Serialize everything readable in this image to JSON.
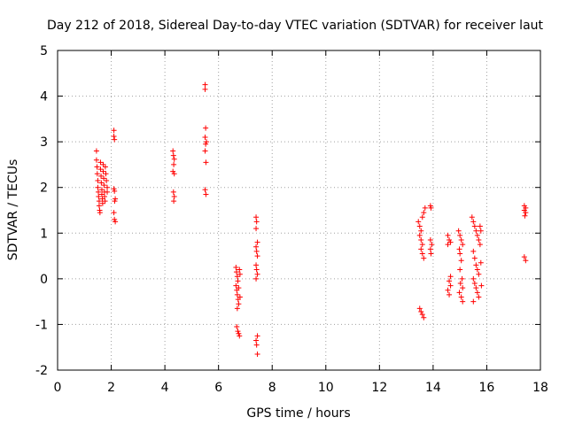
{
  "chart_data": {
    "type": "scatter",
    "title": "Day 212 of 2018, Sidereal Day-to-day VTEC variation (SDTVAR) for receiver laut",
    "xlabel": "GPS time / hours",
    "ylabel": "SDTVAR / TECUs",
    "xlim": [
      0,
      18
    ],
    "ylim": [
      -2,
      5
    ],
    "xticks": [
      0,
      2,
      4,
      6,
      8,
      10,
      12,
      14,
      16,
      18
    ],
    "yticks": [
      -2,
      -1,
      0,
      1,
      2,
      3,
      4,
      5
    ],
    "grid": true,
    "marker": "+",
    "color": "#ff0000",
    "series": [
      {
        "name": "SDTVAR",
        "points": [
          [
            1.45,
            2.8
          ],
          [
            1.45,
            2.6
          ],
          [
            1.47,
            2.45
          ],
          [
            1.48,
            2.3
          ],
          [
            1.5,
            2.15
          ],
          [
            1.5,
            2.0
          ],
          [
            1.52,
            1.9
          ],
          [
            1.53,
            1.8
          ],
          [
            1.55,
            1.7
          ],
          [
            1.55,
            1.6
          ],
          [
            1.57,
            1.5
          ],
          [
            1.58,
            1.45
          ],
          [
            1.6,
            2.55
          ],
          [
            1.6,
            2.4
          ],
          [
            1.62,
            2.25
          ],
          [
            1.63,
            2.1
          ],
          [
            1.65,
            1.95
          ],
          [
            1.65,
            1.85
          ],
          [
            1.67,
            1.75
          ],
          [
            1.68,
            1.65
          ],
          [
            1.7,
            2.5
          ],
          [
            1.7,
            2.35
          ],
          [
            1.72,
            2.2
          ],
          [
            1.73,
            2.05
          ],
          [
            1.75,
            1.9
          ],
          [
            1.75,
            1.8
          ],
          [
            1.77,
            1.7
          ],
          [
            1.78,
            2.45
          ],
          [
            1.8,
            2.3
          ],
          [
            1.82,
            2.15
          ],
          [
            1.85,
            2.0
          ],
          [
            1.85,
            1.9
          ],
          [
            2.1,
            3.25
          ],
          [
            2.1,
            3.12
          ],
          [
            2.12,
            3.05
          ],
          [
            2.1,
            1.97
          ],
          [
            2.12,
            1.92
          ],
          [
            2.15,
            1.75
          ],
          [
            2.13,
            1.7
          ],
          [
            2.1,
            1.45
          ],
          [
            2.12,
            1.3
          ],
          [
            2.15,
            1.25
          ],
          [
            4.3,
            2.8
          ],
          [
            4.32,
            2.7
          ],
          [
            4.35,
            2.62
          ],
          [
            4.33,
            2.5
          ],
          [
            4.3,
            2.35
          ],
          [
            4.35,
            2.3
          ],
          [
            4.32,
            1.9
          ],
          [
            4.35,
            1.8
          ],
          [
            4.33,
            1.7
          ],
          [
            5.5,
            4.25
          ],
          [
            5.5,
            4.15
          ],
          [
            5.52,
            3.3
          ],
          [
            5.5,
            3.1
          ],
          [
            5.55,
            3.0
          ],
          [
            5.52,
            2.95
          ],
          [
            5.5,
            2.8
          ],
          [
            5.53,
            2.55
          ],
          [
            5.5,
            1.95
          ],
          [
            5.53,
            1.85
          ],
          [
            6.65,
            0.25
          ],
          [
            6.67,
            0.15
          ],
          [
            6.7,
            0.05
          ],
          [
            6.72,
            -0.05
          ],
          [
            6.65,
            -0.15
          ],
          [
            6.68,
            -0.25
          ],
          [
            6.7,
            -0.35
          ],
          [
            6.73,
            -0.45
          ],
          [
            6.75,
            -0.55
          ],
          [
            6.7,
            -0.65
          ],
          [
            6.78,
            0.2
          ],
          [
            6.8,
            0.1
          ],
          [
            6.75,
            -0.2
          ],
          [
            6.8,
            -0.4
          ],
          [
            6.68,
            -1.05
          ],
          [
            6.72,
            -1.15
          ],
          [
            6.75,
            -1.2
          ],
          [
            6.78,
            -1.25
          ],
          [
            7.4,
            1.35
          ],
          [
            7.42,
            1.25
          ],
          [
            7.4,
            1.1
          ],
          [
            7.45,
            0.8
          ],
          [
            7.4,
            0.7
          ],
          [
            7.42,
            0.6
          ],
          [
            7.45,
            0.5
          ],
          [
            7.4,
            0.3
          ],
          [
            7.42,
            0.2
          ],
          [
            7.45,
            0.1
          ],
          [
            7.4,
            0.0
          ],
          [
            7.45,
            -1.25
          ],
          [
            7.4,
            -1.35
          ],
          [
            7.42,
            -1.45
          ],
          [
            7.45,
            -1.65
          ],
          [
            13.45,
            1.25
          ],
          [
            13.5,
            1.15
          ],
          [
            13.55,
            1.05
          ],
          [
            13.5,
            0.95
          ],
          [
            13.55,
            0.85
          ],
          [
            13.6,
            0.75
          ],
          [
            13.55,
            0.65
          ],
          [
            13.6,
            0.55
          ],
          [
            13.65,
            0.45
          ],
          [
            13.6,
            1.35
          ],
          [
            13.65,
            1.45
          ],
          [
            13.7,
            1.55
          ],
          [
            13.5,
            -0.65
          ],
          [
            13.55,
            -0.72
          ],
          [
            13.6,
            -0.78
          ],
          [
            13.65,
            -0.85
          ],
          [
            13.9,
            1.6
          ],
          [
            13.92,
            1.55
          ],
          [
            13.9,
            0.85
          ],
          [
            13.95,
            0.75
          ],
          [
            13.9,
            0.65
          ],
          [
            13.92,
            0.55
          ],
          [
            14.55,
            0.95
          ],
          [
            14.6,
            0.85
          ],
          [
            14.65,
            0.8
          ],
          [
            14.55,
            0.75
          ],
          [
            14.6,
            -0.05
          ],
          [
            14.65,
            -0.15
          ],
          [
            14.55,
            -0.25
          ],
          [
            14.6,
            -0.35
          ],
          [
            14.65,
            0.05
          ],
          [
            14.95,
            1.05
          ],
          [
            15.0,
            0.95
          ],
          [
            15.05,
            0.85
          ],
          [
            15.1,
            0.75
          ],
          [
            14.98,
            0.65
          ],
          [
            15.05,
            0.4
          ],
          [
            15.0,
            0.2
          ],
          [
            15.08,
            0.0
          ],
          [
            15.02,
            -0.1
          ],
          [
            15.1,
            -0.2
          ],
          [
            14.98,
            -0.3
          ],
          [
            15.05,
            -0.4
          ],
          [
            15.1,
            -0.5
          ],
          [
            15.0,
            0.55
          ],
          [
            15.45,
            1.35
          ],
          [
            15.5,
            1.25
          ],
          [
            15.55,
            1.15
          ],
          [
            15.6,
            1.05
          ],
          [
            15.65,
            0.95
          ],
          [
            15.7,
            0.85
          ],
          [
            15.75,
            0.75
          ],
          [
            15.5,
            0.6
          ],
          [
            15.55,
            0.45
          ],
          [
            15.6,
            0.3
          ],
          [
            15.65,
            0.2
          ],
          [
            15.7,
            0.1
          ],
          [
            15.5,
            0.0
          ],
          [
            15.55,
            -0.1
          ],
          [
            15.6,
            -0.2
          ],
          [
            15.65,
            -0.3
          ],
          [
            15.7,
            -0.4
          ],
          [
            15.5,
            -0.5
          ],
          [
            15.75,
            1.15
          ],
          [
            15.78,
            0.35
          ],
          [
            15.8,
            -0.15
          ],
          [
            15.78,
            1.05
          ],
          [
            17.4,
            1.6
          ],
          [
            17.45,
            1.55
          ],
          [
            17.4,
            1.5
          ],
          [
            17.45,
            1.45
          ],
          [
            17.42,
            1.38
          ],
          [
            17.4,
            0.48
          ],
          [
            17.45,
            0.4
          ]
        ]
      }
    ]
  }
}
